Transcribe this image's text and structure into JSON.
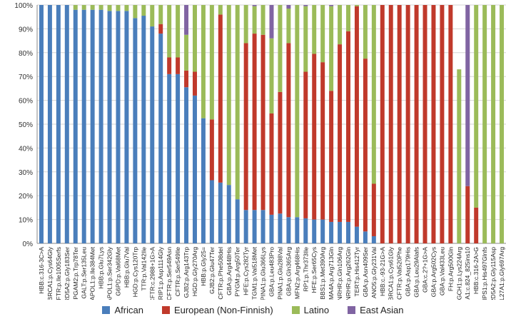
{
  "chart_data": {
    "type": "bar",
    "stacked": true,
    "ylim": [
      0,
      100
    ],
    "yticks": [
      "0%",
      "10%",
      "20%",
      "30%",
      "40%",
      "50%",
      "60%",
      "70%",
      "80%",
      "90%",
      "100%"
    ],
    "grid": true,
    "legend_position": "bottom",
    "colors": {
      "African": "#4a7ebb",
      "European (Non-Finnish)": "#c0392b",
      "Latino": "#9bbb59",
      "East Asian": "#8064a2"
    },
    "categories": [
      "HBB:c.316-3C>A",
      "BRCA1:p.Cys64Gly",
      "CFTR:p.Ile1005Serfs",
      "SRD5A2:p.Gly183Ser",
      "PGAM2:p.Trp78Ter",
      "GALT:p.Ser135Leu",
      "APOL1:p.Ile384Met",
      "HBB:p.Glu7Lys",
      "APOL1:p.Ser342Gly",
      "G6PD:p.Val68Met",
      "HBB:p.Glu7Val",
      "HGD:p.Cys120Trp",
      "TTR:p.Val142Ile",
      "CFTR:c.2988+1G>A",
      "RPGRIP1:p.Asp1114Gly",
      "CFTR:p.Ser549Asn",
      "CFTR:p.Ser549Ile",
      "GJB2:p.Arg143Trp",
      "HGD:p.Gly270Arg",
      "HBB:p.Gly25=",
      "GJB2:p.Glu47Ter",
      "CFTR:p.Phe508del",
      "GBA:p.Arg448His",
      "PYGM:p.Arg50Ter",
      "HFE:p.Cys282Tyr",
      "TGM1:p.Val518Met",
      "SERPINA1:p.Glu366Lys",
      "GBA:p.Leu483Pro",
      "SERPINA1:p.Glu288Val",
      "GBA:p.Gln365Arg",
      "MFN2:p.Arg468His",
      "RP1:p.Thr373Ile",
      "HFE:p.Ser65Cys",
      "BBS1:p.Met390Arg",
      "SEMA4A:p.Arg713Gln",
      "GNRHR:p.Gln106Arg",
      "GNRHR:p.Arg262Gln",
      "TERT:p.His412Tyr",
      "GBA:p.Asn409Ser",
      "ANO5:p.Gly231Val",
      "HBB:c.-93-21G>A",
      "BRCA1:p.Cys61Gly",
      "CFTR:p.Val520Phe",
      "GBA:p.Asp179His",
      "GBA:p.Leu29Alafs",
      "GBA:c.2?+1G>A",
      "GBA:p.Arg502Cys",
      "GBA:p.Val433Leu",
      "FH:p.Arg500Gln",
      "GCH1:p.Lys224Arg",
      "BRCA1:c.824_825ins10",
      "HBB:c.316-2A>G",
      "HPS1:p.His497Glnfs",
      "SRD5A2:p.Gly115Asp",
      "COL27A1:p.Gly697Arg"
    ],
    "series": [
      {
        "name": "African",
        "values": [
          100,
          100,
          100,
          100,
          98,
          98,
          98,
          98,
          97.5,
          97.5,
          97.5,
          94.5,
          95.5,
          91,
          88,
          71,
          71,
          65.5,
          62,
          52.5,
          26.5,
          25.5,
          24.5,
          18.5,
          14,
          14,
          14,
          12,
          12.5,
          11,
          11,
          10.5,
          10,
          10,
          9,
          9,
          9,
          7,
          5,
          3,
          0,
          0,
          0,
          0,
          0,
          0,
          0,
          0,
          0,
          0,
          0,
          0,
          0,
          0,
          0
        ]
      },
      {
        "name": "European (Non-Finnish)",
        "values": [
          0,
          0,
          0,
          0,
          0,
          0,
          0,
          0,
          0,
          0,
          0,
          0,
          0,
          0,
          4,
          7,
          7,
          7,
          10,
          0,
          25.5,
          70.5,
          0,
          0,
          70,
          74,
          73.5,
          42.5,
          51,
          73,
          0,
          61.5,
          69.5,
          66,
          55,
          74.5,
          80,
          92.5,
          72.5,
          22,
          100,
          100,
          100,
          100,
          100,
          100,
          100,
          100,
          100,
          0,
          24,
          15,
          0,
          0,
          0
        ]
      },
      {
        "name": "Latino",
        "values": [
          0,
          0,
          0,
          0,
          2,
          2,
          2,
          2,
          2.5,
          2.5,
          2.5,
          5.5,
          4.5,
          9,
          8,
          22,
          22,
          15,
          28,
          47.5,
          48,
          4,
          75.5,
          81.5,
          16,
          11.5,
          12.5,
          31.5,
          36.5,
          14.5,
          89,
          27.5,
          20.5,
          24,
          35.5,
          16.5,
          11,
          0.5,
          22.5,
          75,
          0,
          0,
          0,
          0,
          0,
          0,
          0,
          0,
          0,
          73,
          0,
          85,
          100,
          100,
          100
        ]
      },
      {
        "name": "East Asian",
        "values": [
          0,
          0,
          0,
          0,
          0,
          0,
          0,
          0,
          0,
          0,
          0,
          0,
          0,
          0,
          0,
          0,
          0,
          12.5,
          0,
          0,
          0,
          0,
          0,
          0,
          0,
          0.5,
          0,
          14,
          0,
          1.5,
          0,
          0.5,
          0,
          0,
          0.5,
          0,
          0,
          0,
          0,
          0,
          0,
          0,
          0,
          0,
          0,
          0,
          0,
          0,
          0,
          0,
          76,
          0,
          0,
          0,
          0
        ]
      }
    ]
  }
}
